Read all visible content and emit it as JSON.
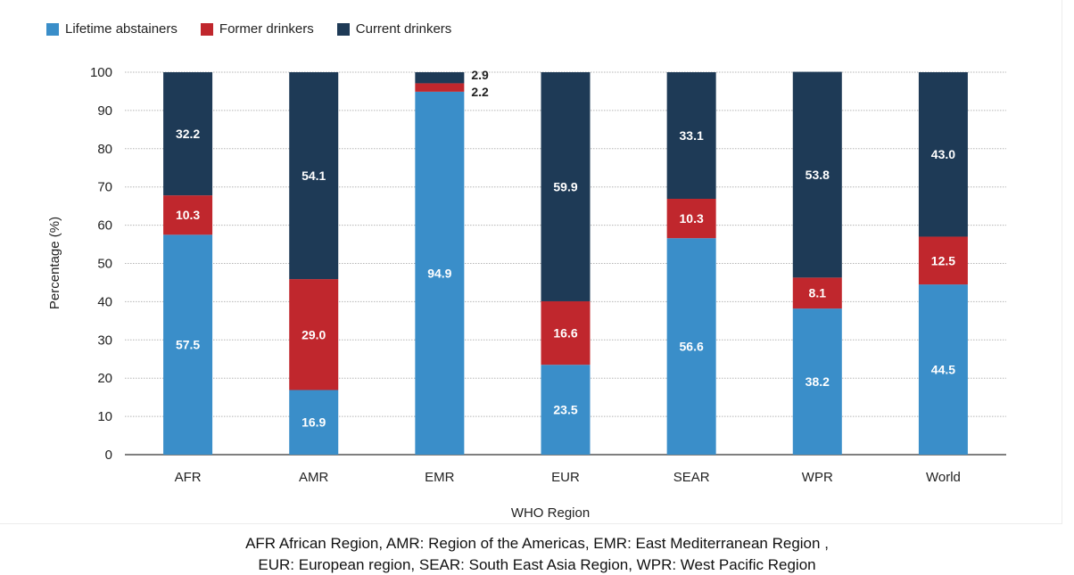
{
  "chart_data": {
    "type": "stacked-bar",
    "categories": [
      "AFR",
      "AMR",
      "EMR",
      "EUR",
      "SEAR",
      "WPR",
      "World"
    ],
    "series": [
      {
        "name": "Lifetime abstainers",
        "color": "#3a8ec9",
        "values": [
          57.5,
          16.9,
          94.9,
          23.5,
          56.6,
          38.2,
          44.5
        ]
      },
      {
        "name": "Former drinkers",
        "color": "#c0272d",
        "values": [
          10.3,
          29.0,
          2.2,
          16.6,
          10.3,
          8.1,
          12.5
        ]
      },
      {
        "name": "Current drinkers",
        "color": "#1e3a56",
        "values": [
          32.2,
          54.1,
          2.9,
          59.9,
          33.1,
          53.8,
          43.0
        ]
      }
    ],
    "data_labels": [
      [
        "57.5",
        "16.9",
        "94.9",
        "23.5",
        "56.6",
        "38.2",
        "44.5"
      ],
      [
        "10.3",
        "29.0",
        "2.2",
        "16.6",
        "10.3",
        "8.1",
        "12.5"
      ],
      [
        "32.2",
        "54.1",
        "2.9",
        "59.9",
        "33.1",
        "53.8",
        "43.0"
      ]
    ],
    "xlabel": "WHO Region",
    "ylabel": "Percentage (%)",
    "ylim": [
      0,
      100
    ],
    "yticks": [
      0,
      10,
      20,
      30,
      40,
      50,
      60,
      70,
      80,
      90,
      100
    ],
    "grid": true,
    "legend": "top-left"
  },
  "caption": {
    "line1": "AFR African Region, AMR: Region of the Americas, EMR: East Mediterranean Region ,",
    "line2": "EUR:  European  region, SEAR: South East Asia Region, WPR: West Pacific Region"
  }
}
